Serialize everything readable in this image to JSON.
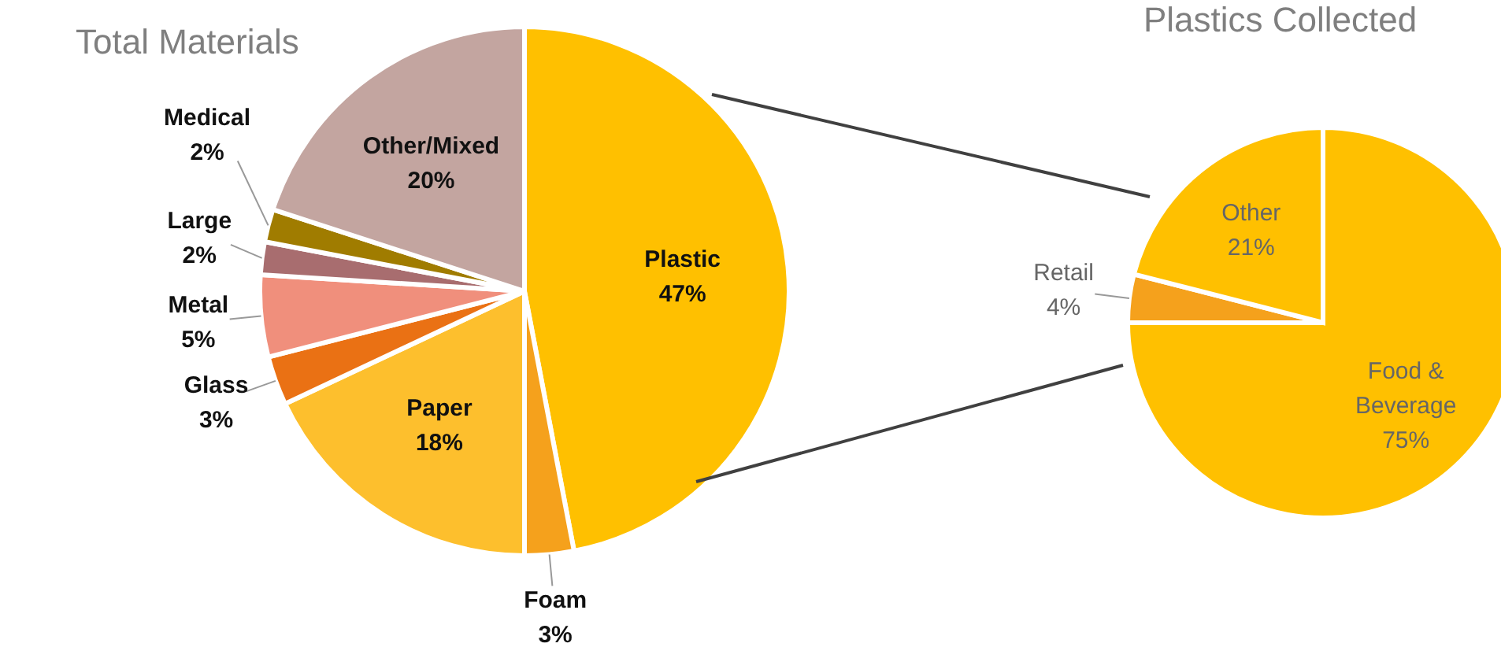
{
  "chart_data": [
    {
      "type": "pie",
      "title": "Total Materials",
      "categories": [
        "Plastic",
        "Foam",
        "Paper",
        "Glass",
        "Metal",
        "Large",
        "Medical",
        "Other/Mixed"
      ],
      "values": [
        47,
        3,
        18,
        3,
        5,
        2,
        2,
        20
      ],
      "value_labels": [
        "47%",
        "3%",
        "18%",
        "3%",
        "5%",
        "2%",
        "2%",
        "20%"
      ],
      "colors": [
        "#ffc000",
        "#f5a11c",
        "#fdbf2d",
        "#ea7114",
        "#f08f7c",
        "#a86d6f",
        "#a07c00",
        "#c3a5a0"
      ],
      "legend": false
    },
    {
      "type": "pie",
      "title": "Plastics Collected",
      "categories": [
        "Food & Beverage",
        "Retail",
        "Other"
      ],
      "values": [
        75,
        4,
        21
      ],
      "value_labels": [
        "75%",
        "4%",
        "21%"
      ],
      "colors": [
        "#ffc000",
        "#f5a11c",
        "#ffc000"
      ],
      "legend": false
    }
  ]
}
